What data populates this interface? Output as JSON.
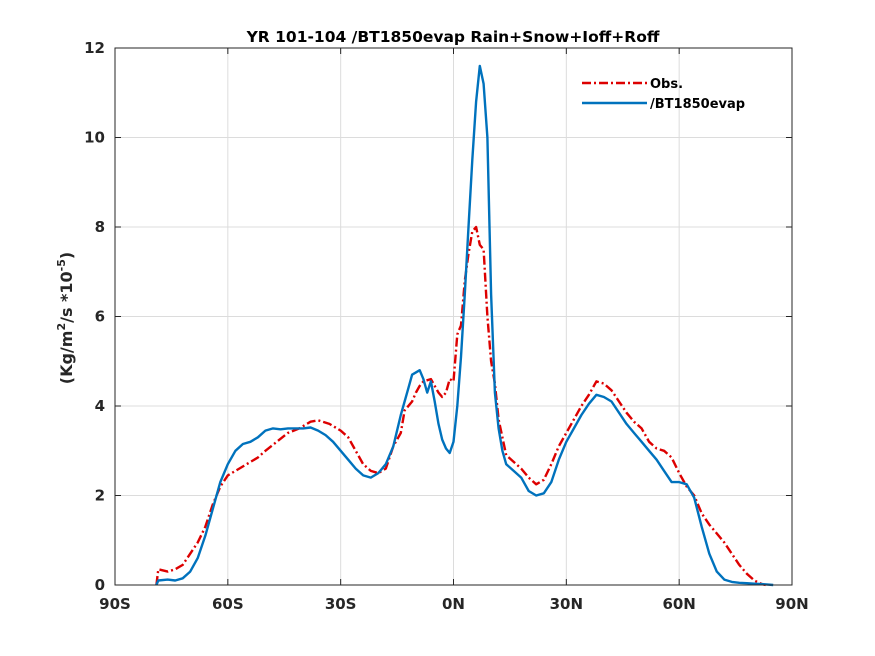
{
  "chart_data": {
    "type": "line",
    "title": "YR 101-104 /BT1850evap  Rain+Snow+Ioff+Roff",
    "xlabel": "",
    "ylabel_main": "(Kg/m",
    "ylabel_sup1": "2",
    "ylabel_mid": "/s *10",
    "ylabel_sup2": "-5",
    "ylabel_end": ")",
    "xlim": [
      -90,
      90
    ],
    "ylim": [
      0,
      12
    ],
    "grid": true,
    "legend_position": "top-right",
    "x_ticks": [
      {
        "value": -90,
        "label": "90S"
      },
      {
        "value": -60,
        "label": "60S"
      },
      {
        "value": -30,
        "label": "30S"
      },
      {
        "value": 0,
        "label": "0N"
      },
      {
        "value": 30,
        "label": "30N"
      },
      {
        "value": 60,
        "label": "60N"
      },
      {
        "value": 90,
        "label": "90N"
      }
    ],
    "y_ticks": [
      {
        "value": 0,
        "label": "0"
      },
      {
        "value": 2,
        "label": "2"
      },
      {
        "value": 4,
        "label": "4"
      },
      {
        "value": 6,
        "label": "6"
      },
      {
        "value": 8,
        "label": "8"
      },
      {
        "value": 10,
        "label": "10"
      },
      {
        "value": 12,
        "label": "12"
      }
    ],
    "series": [
      {
        "name": "Obs.",
        "color": "#dd0000",
        "style": "dash-dot",
        "points": [
          [
            -79,
            0.0
          ],
          [
            -78.5,
            0.35
          ],
          [
            -76,
            0.3
          ],
          [
            -74,
            0.35
          ],
          [
            -72,
            0.45
          ],
          [
            -70,
            0.7
          ],
          [
            -68,
            0.95
          ],
          [
            -66,
            1.3
          ],
          [
            -64,
            1.8
          ],
          [
            -62,
            2.2
          ],
          [
            -60,
            2.45
          ],
          [
            -58,
            2.55
          ],
          [
            -55,
            2.7
          ],
          [
            -52,
            2.85
          ],
          [
            -50,
            3.0
          ],
          [
            -47,
            3.2
          ],
          [
            -44,
            3.4
          ],
          [
            -41,
            3.5
          ],
          [
            -38,
            3.65
          ],
          [
            -36,
            3.68
          ],
          [
            -33,
            3.6
          ],
          [
            -30,
            3.45
          ],
          [
            -28,
            3.3
          ],
          [
            -26,
            3.0
          ],
          [
            -24,
            2.7
          ],
          [
            -22,
            2.55
          ],
          [
            -20,
            2.5
          ],
          [
            -18,
            2.6
          ],
          [
            -16,
            3.1
          ],
          [
            -14,
            3.4
          ],
          [
            -13,
            3.9
          ],
          [
            -11,
            4.1
          ],
          [
            -10,
            4.3
          ],
          [
            -9,
            4.45
          ],
          [
            -8,
            4.55
          ],
          [
            -6,
            4.6
          ],
          [
            -4,
            4.3
          ],
          [
            -3,
            4.2
          ],
          [
            -2,
            4.3
          ],
          [
            -1,
            4.6
          ],
          [
            0,
            4.55
          ],
          [
            1,
            5.6
          ],
          [
            2,
            5.8
          ],
          [
            3,
            6.8
          ],
          [
            4,
            7.4
          ],
          [
            5,
            7.9
          ],
          [
            6,
            8.0
          ],
          [
            7,
            7.6
          ],
          [
            8,
            7.5
          ],
          [
            9,
            6.0
          ],
          [
            10,
            5.0
          ],
          [
            11,
            4.5
          ],
          [
            12,
            3.7
          ],
          [
            13,
            3.3
          ],
          [
            14,
            2.9
          ],
          [
            16,
            2.75
          ],
          [
            18,
            2.6
          ],
          [
            20,
            2.4
          ],
          [
            22,
            2.25
          ],
          [
            24,
            2.35
          ],
          [
            26,
            2.7
          ],
          [
            28,
            3.1
          ],
          [
            30,
            3.4
          ],
          [
            32,
            3.7
          ],
          [
            34,
            4.0
          ],
          [
            36,
            4.25
          ],
          [
            38,
            4.55
          ],
          [
            40,
            4.5
          ],
          [
            42,
            4.35
          ],
          [
            44,
            4.1
          ],
          [
            46,
            3.85
          ],
          [
            48,
            3.65
          ],
          [
            50,
            3.5
          ],
          [
            52,
            3.2
          ],
          [
            54,
            3.05
          ],
          [
            56,
            3.0
          ],
          [
            58,
            2.85
          ],
          [
            60,
            2.5
          ],
          [
            62,
            2.2
          ],
          [
            64,
            2.0
          ],
          [
            66,
            1.6
          ],
          [
            68,
            1.35
          ],
          [
            70,
            1.15
          ],
          [
            72,
            0.95
          ],
          [
            74,
            0.7
          ],
          [
            76,
            0.45
          ],
          [
            78,
            0.25
          ],
          [
            80,
            0.1
          ],
          [
            82,
            0.02
          ],
          [
            83,
            0.0
          ]
        ]
      },
      {
        "name": "/BT1850evap",
        "color": "#0072bd",
        "style": "solid",
        "points": [
          [
            -79,
            0.0
          ],
          [
            -78.5,
            0.1
          ],
          [
            -76,
            0.12
          ],
          [
            -74,
            0.1
          ],
          [
            -72,
            0.15
          ],
          [
            -70,
            0.3
          ],
          [
            -68,
            0.6
          ],
          [
            -66,
            1.1
          ],
          [
            -64,
            1.7
          ],
          [
            -62,
            2.3
          ],
          [
            -60,
            2.7
          ],
          [
            -58,
            3.0
          ],
          [
            -56,
            3.15
          ],
          [
            -54,
            3.2
          ],
          [
            -52,
            3.3
          ],
          [
            -50,
            3.45
          ],
          [
            -48,
            3.5
          ],
          [
            -46,
            3.48
          ],
          [
            -44,
            3.5
          ],
          [
            -42,
            3.5
          ],
          [
            -40,
            3.5
          ],
          [
            -38,
            3.52
          ],
          [
            -36,
            3.45
          ],
          [
            -34,
            3.35
          ],
          [
            -32,
            3.2
          ],
          [
            -30,
            3.0
          ],
          [
            -28,
            2.8
          ],
          [
            -26,
            2.6
          ],
          [
            -24,
            2.45
          ],
          [
            -22,
            2.4
          ],
          [
            -20,
            2.5
          ],
          [
            -18,
            2.7
          ],
          [
            -16,
            3.1
          ],
          [
            -14,
            3.8
          ],
          [
            -12,
            4.4
          ],
          [
            -11,
            4.7
          ],
          [
            -9,
            4.8
          ],
          [
            -8,
            4.6
          ],
          [
            -7,
            4.3
          ],
          [
            -6,
            4.55
          ],
          [
            -5,
            4.1
          ],
          [
            -4,
            3.6
          ],
          [
            -3,
            3.25
          ],
          [
            -2,
            3.05
          ],
          [
            -1,
            2.95
          ],
          [
            0,
            3.2
          ],
          [
            1,
            4.0
          ],
          [
            2,
            5.1
          ],
          [
            3,
            6.5
          ],
          [
            4,
            8.0
          ],
          [
            5,
            9.5
          ],
          [
            6,
            10.8
          ],
          [
            7,
            11.6
          ],
          [
            8,
            11.2
          ],
          [
            9,
            10.0
          ],
          [
            10,
            6.5
          ],
          [
            11,
            4.3
          ],
          [
            12,
            3.5
          ],
          [
            13,
            3.0
          ],
          [
            14,
            2.7
          ],
          [
            16,
            2.55
          ],
          [
            18,
            2.4
          ],
          [
            20,
            2.1
          ],
          [
            22,
            2.0
          ],
          [
            24,
            2.05
          ],
          [
            26,
            2.3
          ],
          [
            28,
            2.8
          ],
          [
            30,
            3.2
          ],
          [
            32,
            3.5
          ],
          [
            34,
            3.8
          ],
          [
            36,
            4.05
          ],
          [
            38,
            4.25
          ],
          [
            40,
            4.2
          ],
          [
            42,
            4.1
          ],
          [
            44,
            3.85
          ],
          [
            46,
            3.6
          ],
          [
            48,
            3.4
          ],
          [
            50,
            3.2
          ],
          [
            52,
            3.0
          ],
          [
            54,
            2.8
          ],
          [
            56,
            2.55
          ],
          [
            58,
            2.3
          ],
          [
            60,
            2.3
          ],
          [
            62,
            2.25
          ],
          [
            64,
            1.95
          ],
          [
            66,
            1.3
          ],
          [
            68,
            0.7
          ],
          [
            70,
            0.3
          ],
          [
            72,
            0.12
          ],
          [
            74,
            0.07
          ],
          [
            76,
            0.05
          ],
          [
            78,
            0.04
          ],
          [
            80,
            0.03
          ],
          [
            82,
            0.02
          ],
          [
            85,
            0.0
          ]
        ]
      }
    ]
  }
}
